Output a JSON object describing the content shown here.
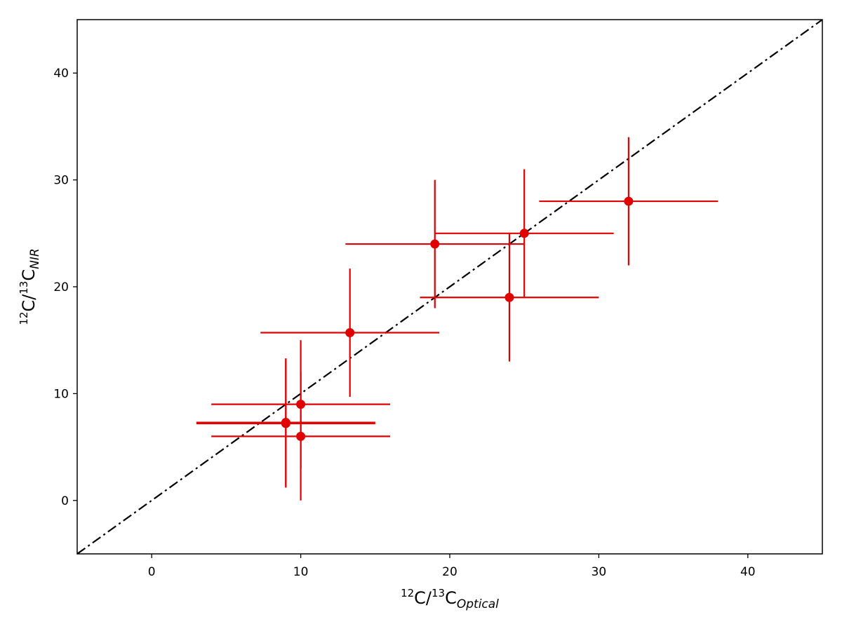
{
  "chart_data": {
    "type": "scatter",
    "xlabel": {
      "sup1": "12",
      "base1": "C/",
      "sup2": "13",
      "base2": "C",
      "sub": "Optical"
    },
    "ylabel": {
      "sup1": "12",
      "base1": "C/",
      "sup2": "13",
      "base2": "C",
      "sub": "NIR"
    },
    "xlim": [
      -5,
      45
    ],
    "ylim": [
      -5,
      45
    ],
    "xticks": [
      0,
      10,
      20,
      30,
      40
    ],
    "yticks": [
      0,
      10,
      20,
      30,
      40
    ],
    "xtick_labels": [
      "0",
      "10",
      "20",
      "30",
      "40"
    ],
    "ytick_labels": [
      "0",
      "10",
      "20",
      "30",
      "40"
    ],
    "grid": false,
    "colors": {
      "points": "#e00000",
      "reference_line": "#000000"
    },
    "reference_line": {
      "style": "dash-dot",
      "x": [
        -5,
        45
      ],
      "y": [
        -5,
        45
      ]
    },
    "points": [
      {
        "x": 9,
        "y": 7.3,
        "xerr": 6,
        "yerr": 6
      },
      {
        "x": 9,
        "y": 7.2,
        "xerr": 6,
        "yerr": 6
      },
      {
        "x": 10,
        "y": 9,
        "xerr": 6,
        "yerr": 6
      },
      {
        "x": 10,
        "y": 6,
        "xerr": 6,
        "yerr": 6
      },
      {
        "x": 13.3,
        "y": 15.7,
        "xerr": 6,
        "yerr": 6
      },
      {
        "x": 19,
        "y": 24,
        "xerr": 6,
        "yerr": 6
      },
      {
        "x": 24,
        "y": 19,
        "xerr": 6,
        "yerr": 6
      },
      {
        "x": 25,
        "y": 25,
        "xerr": 6,
        "yerr": 6
      },
      {
        "x": 32,
        "y": 28,
        "xerr": 6,
        "yerr": 6
      }
    ]
  }
}
